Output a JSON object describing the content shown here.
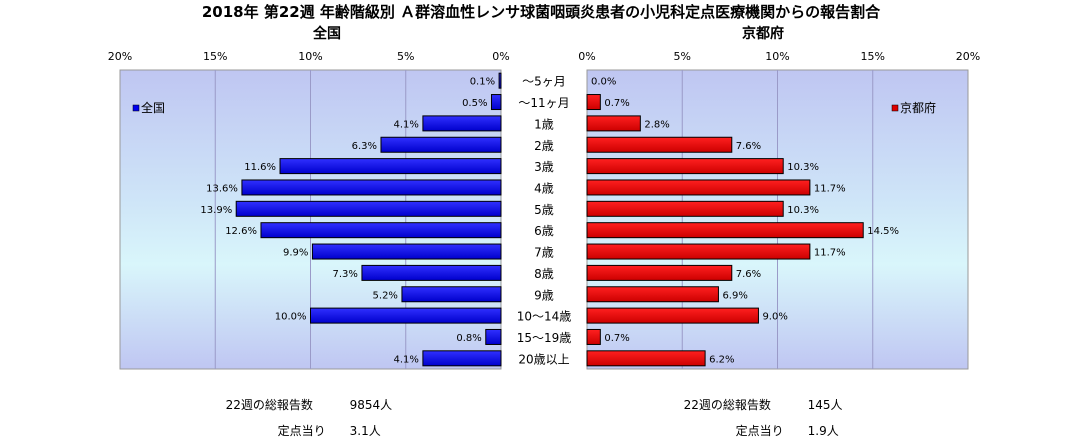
{
  "title": "2018年 第22週 年齢階級別 Ａ群溶血性レンサ球菌咽頭炎患者の小児科定点医療機関からの報告割合",
  "chart_data": {
    "type": "bar",
    "orientation": "horizontal-butterfly",
    "categories": [
      "～5ヶ月",
      "～11ヶ月",
      "1歳",
      "2歳",
      "3歳",
      "4歳",
      "5歳",
      "6歳",
      "7歳",
      "8歳",
      "9歳",
      "10～14歳",
      "15～19歳",
      "20歳以上"
    ],
    "xlim": [
      0,
      20
    ],
    "ticks": [
      "0%",
      "5%",
      "10%",
      "15%",
      "20%"
    ],
    "tick_values": [
      0,
      5,
      10,
      15,
      20
    ],
    "grid": true,
    "series": [
      {
        "name": "全国",
        "subtitle": "全国",
        "legend": "全国",
        "legend_position": "left",
        "color": "#0000ee",
        "values": [
          0.1,
          0.5,
          4.1,
          6.3,
          11.6,
          13.6,
          13.9,
          12.6,
          9.9,
          7.3,
          5.2,
          10.0,
          0.8,
          4.1
        ],
        "labels": [
          "0.1%",
          "0.5%",
          "4.1%",
          "6.3%",
          "11.6%",
          "13.6%",
          "13.9%",
          "12.6%",
          "9.9%",
          "7.3%",
          "5.2%",
          "10.0%",
          "0.8%",
          "4.1%"
        ]
      },
      {
        "name": "京都府",
        "subtitle": "京都府",
        "legend": "京都府",
        "legend_position": "right",
        "color": "#dd0000",
        "values": [
          0.0,
          0.7,
          2.8,
          7.6,
          10.3,
          11.7,
          10.3,
          14.5,
          11.7,
          7.6,
          6.9,
          9.0,
          0.7,
          6.2
        ],
        "labels": [
          "0.0%",
          "0.7%",
          "2.8%",
          "7.6%",
          "10.3%",
          "11.7%",
          "10.3%",
          "14.5%",
          "11.7%",
          "7.6%",
          "6.9%",
          "9.0%",
          "0.7%",
          "6.2%"
        ]
      }
    ]
  },
  "footer": {
    "national": {
      "total_label": "22週の総報告数",
      "total_value": "9854人",
      "per_label": "定点当り",
      "per_value": "3.1人"
    },
    "kyoto": {
      "total_label": "22週の総報告数",
      "total_value": "145人",
      "per_label": "定点当り",
      "per_value": "1.9人"
    }
  }
}
